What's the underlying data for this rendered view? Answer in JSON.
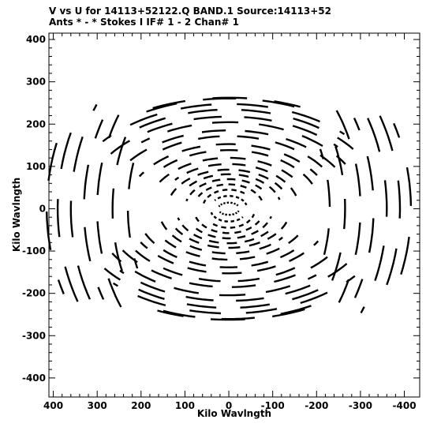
{
  "chart_data": {
    "type": "scatter",
    "title": "V vs U for 14113+52122.Q BAND.1   Source:14113+52",
    "subtitle": "Ants * - *     Stokes I   IF# 1 - 2   Chan# 1",
    "xlabel": "Kilo Wavlngth",
    "ylabel": "Kilo Wavlngth",
    "xlim": [
      410,
      -435
    ],
    "ylim": [
      -445,
      415
    ],
    "x_ticks": [
      400,
      300,
      200,
      100,
      0,
      -100,
      -200,
      -300,
      -400
    ],
    "x_tick_labels": [
      "400",
      "300",
      "200",
      "100",
      "0",
      "-100",
      "-200",
      "-300",
      "-400"
    ],
    "y_ticks": [
      400,
      300,
      200,
      100,
      0,
      -100,
      -200,
      -300,
      -400
    ],
    "y_tick_labels": [
      "400",
      "300",
      "200",
      "100",
      "0",
      "-100",
      "-200",
      "-300",
      "-400"
    ],
    "grid": false,
    "marker_color": "#000000",
    "tracks": [
      {
        "r": 24,
        "e": 0.6,
        "a0": 20,
        "a1": 150
      },
      {
        "r": 42,
        "e": 0.72,
        "a0": 40,
        "a1": 170
      },
      {
        "r": 60,
        "e": 0.75,
        "a0": 10,
        "a1": 130
      },
      {
        "r": 80,
        "e": 0.72,
        "a0": 30,
        "a1": 160
      },
      {
        "r": 100,
        "e": 0.7,
        "a0": 15,
        "a1": 145
      },
      {
        "r": 120,
        "e": 0.68,
        "a0": 35,
        "a1": 165
      },
      {
        "r": 140,
        "e": 0.66,
        "a0": 20,
        "a1": 150
      },
      {
        "r": 160,
        "e": 0.66,
        "a0": 40,
        "a1": 168
      },
      {
        "r": 185,
        "e": 0.65,
        "a0": 25,
        "a1": 150
      },
      {
        "r": 210,
        "e": 0.66,
        "a0": 45,
        "a1": 160
      },
      {
        "r": 235,
        "e": 0.65,
        "a0": 30,
        "a1": 150
      },
      {
        "r": 260,
        "e": 0.66,
        "a0": 48,
        "a1": 155
      },
      {
        "r": 285,
        "e": 0.65,
        "a0": 38,
        "a1": 150
      },
      {
        "r": 310,
        "e": 0.66,
        "a0": 50,
        "a1": 150
      },
      {
        "r": 335,
        "e": 0.65,
        "a0": 30,
        "a1": 140
      },
      {
        "r": 355,
        "e": 0.66,
        "a0": 55,
        "a1": 145
      },
      {
        "r": 375,
        "e": 0.66,
        "a0": 40,
        "a1": 135
      },
      {
        "r": 395,
        "e": 0.66,
        "a0": 55,
        "a1": 120
      },
      {
        "r": 410,
        "e": 0.64,
        "a0": 65,
        "a1": 115
      },
      {
        "r": 230,
        "e": 1.45,
        "a0": -25,
        "a1": 25
      },
      {
        "r": 265,
        "e": 1.4,
        "a0": -30,
        "a1": 30
      },
      {
        "r": 300,
        "e": 1.35,
        "a0": -35,
        "a1": 35
      },
      {
        "r": 330,
        "e": 1.3,
        "a0": -30,
        "a1": 30
      },
      {
        "r": 360,
        "e": 1.25,
        "a0": -35,
        "a1": 35
      },
      {
        "r": 390,
        "e": 1.2,
        "a0": -28,
        "a1": 28
      },
      {
        "r": 415,
        "e": 1.15,
        "a0": -25,
        "a1": 25
      }
    ]
  }
}
